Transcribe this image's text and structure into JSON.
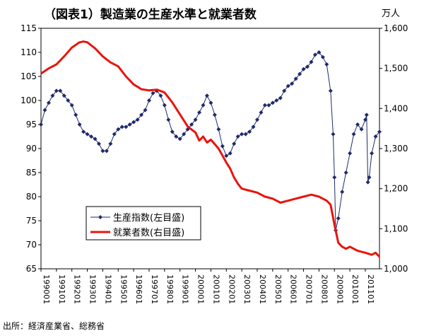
{
  "title": "（図表1）製造業の生産水準と就業者数",
  "right_unit": "万人",
  "source": "出所：経済産業省、総務省",
  "chart_data": {
    "type": "line",
    "xlim": [
      "1990-01",
      "2011-12"
    ],
    "left_axis": {
      "range": [
        65,
        115
      ],
      "ticks": [
        "65",
        "70",
        "75",
        "80",
        "85",
        "90",
        "95",
        "100",
        "105",
        "110",
        "115"
      ]
    },
    "right_axis": {
      "range": [
        1000,
        1600
      ],
      "ticks": [
        "1,000",
        "1,100",
        "1,200",
        "1,300",
        "1,400",
        "1,500",
        "1,600"
      ]
    },
    "x_ticks": [
      "199001",
      "199101",
      "199201",
      "199301",
      "199401",
      "199501",
      "199601",
      "199701",
      "199801",
      "199901",
      "200001",
      "200101",
      "200201",
      "200301",
      "200401",
      "200501",
      "200601",
      "200701",
      "200801",
      "200901",
      "201001",
      "201101"
    ],
    "series": [
      {
        "name": "生産指数(左目盛)",
        "axis": "left",
        "color": "#1F2A6B",
        "marker": "diamond",
        "points": [
          [
            "1990-01",
            95
          ],
          [
            "1990-04",
            98
          ],
          [
            "1990-07",
            99.5
          ],
          [
            "1990-10",
            101
          ],
          [
            "1991-01",
            102
          ],
          [
            "1991-04",
            102
          ],
          [
            "1991-07",
            101
          ],
          [
            "1991-10",
            100
          ],
          [
            "1992-01",
            99
          ],
          [
            "1992-04",
            97
          ],
          [
            "1992-07",
            95
          ],
          [
            "1992-10",
            93.5
          ],
          [
            "1993-01",
            93
          ],
          [
            "1993-04",
            92.5
          ],
          [
            "1993-07",
            92
          ],
          [
            "1993-10",
            91
          ],
          [
            "1994-01",
            89.5
          ],
          [
            "1994-04",
            89.5
          ],
          [
            "1994-07",
            91
          ],
          [
            "1994-10",
            93
          ],
          [
            "1995-01",
            94
          ],
          [
            "1995-04",
            94.5
          ],
          [
            "1995-07",
            94.5
          ],
          [
            "1995-10",
            95
          ],
          [
            "1996-01",
            95.5
          ],
          [
            "1996-04",
            96
          ],
          [
            "1996-07",
            97
          ],
          [
            "1996-10",
            98
          ],
          [
            "1997-01",
            100
          ],
          [
            "1997-04",
            101.5
          ],
          [
            "1997-07",
            102
          ],
          [
            "1997-10",
            101
          ],
          [
            "1998-01",
            99
          ],
          [
            "1998-04",
            96
          ],
          [
            "1998-07",
            93.5
          ],
          [
            "1998-10",
            92.5
          ],
          [
            "1999-01",
            92
          ],
          [
            "1999-04",
            93
          ],
          [
            "1999-07",
            94
          ],
          [
            "1999-10",
            95
          ],
          [
            "2000-01",
            96
          ],
          [
            "2000-04",
            97.5
          ],
          [
            "2000-07",
            99
          ],
          [
            "2000-10",
            101
          ],
          [
            "2001-01",
            99.5
          ],
          [
            "2001-04",
            97
          ],
          [
            "2001-07",
            94
          ],
          [
            "2001-10",
            90.5
          ],
          [
            "2002-01",
            88.5
          ],
          [
            "2002-04",
            89
          ],
          [
            "2002-07",
            91
          ],
          [
            "2002-10",
            92.5
          ],
          [
            "2003-01",
            93
          ],
          [
            "2003-04",
            93
          ],
          [
            "2003-07",
            93.5
          ],
          [
            "2003-10",
            94.5
          ],
          [
            "2004-01",
            96
          ],
          [
            "2004-04",
            97.5
          ],
          [
            "2004-07",
            99
          ],
          [
            "2004-10",
            99
          ],
          [
            "2005-01",
            99.5
          ],
          [
            "2005-04",
            100
          ],
          [
            "2005-07",
            100.5
          ],
          [
            "2005-10",
            102
          ],
          [
            "2006-01",
            103
          ],
          [
            "2006-04",
            103.5
          ],
          [
            "2006-07",
            104.5
          ],
          [
            "2006-10",
            105.5
          ],
          [
            "2007-01",
            106.5
          ],
          [
            "2007-04",
            107
          ],
          [
            "2007-07",
            108
          ],
          [
            "2007-10",
            109.5
          ],
          [
            "2008-01",
            110
          ],
          [
            "2008-04",
            109
          ],
          [
            "2008-07",
            107.5
          ],
          [
            "2008-10",
            102
          ],
          [
            "2008-12",
            93
          ],
          [
            "2009-01",
            84
          ],
          [
            "2009-02",
            73
          ],
          [
            "2009-04",
            75.5
          ],
          [
            "2009-07",
            81
          ],
          [
            "2009-10",
            85
          ],
          [
            "2010-01",
            89
          ],
          [
            "2010-04",
            93
          ],
          [
            "2010-07",
            95
          ],
          [
            "2010-10",
            94
          ],
          [
            "2011-01",
            96
          ],
          [
            "2011-02",
            97
          ],
          [
            "2011-03",
            83
          ],
          [
            "2011-04",
            84
          ],
          [
            "2011-06",
            89
          ],
          [
            "2011-09",
            92.5
          ],
          [
            "2011-12",
            93.5
          ]
        ]
      },
      {
        "name": "就業者数(右目盛)",
        "axis": "right",
        "color": "#E8140C",
        "marker": "none",
        "points": [
          [
            "1990-01",
            1487
          ],
          [
            "1990-07",
            1500
          ],
          [
            "1991-01",
            1510
          ],
          [
            "1991-07",
            1530
          ],
          [
            "1992-01",
            1552
          ],
          [
            "1992-07",
            1565
          ],
          [
            "1992-10",
            1567
          ],
          [
            "1993-01",
            1565
          ],
          [
            "1993-07",
            1550
          ],
          [
            "1994-01",
            1530
          ],
          [
            "1994-07",
            1515
          ],
          [
            "1995-01",
            1505
          ],
          [
            "1995-07",
            1480
          ],
          [
            "1996-01",
            1460
          ],
          [
            "1996-07",
            1448
          ],
          [
            "1997-01",
            1445
          ],
          [
            "1997-07",
            1447
          ],
          [
            "1998-01",
            1440
          ],
          [
            "1998-07",
            1415
          ],
          [
            "1999-01",
            1385
          ],
          [
            "1999-07",
            1355
          ],
          [
            "2000-01",
            1340
          ],
          [
            "2000-04",
            1320
          ],
          [
            "2000-07",
            1330
          ],
          [
            "2000-10",
            1315
          ],
          [
            "2001-01",
            1322
          ],
          [
            "2001-07",
            1300
          ],
          [
            "2002-01",
            1265
          ],
          [
            "2002-04",
            1250
          ],
          [
            "2002-07",
            1228
          ],
          [
            "2002-10",
            1212
          ],
          [
            "2003-01",
            1200
          ],
          [
            "2003-07",
            1195
          ],
          [
            "2004-01",
            1190
          ],
          [
            "2004-07",
            1180
          ],
          [
            "2005-01",
            1175
          ],
          [
            "2005-07",
            1165
          ],
          [
            "2006-01",
            1170
          ],
          [
            "2006-07",
            1175
          ],
          [
            "2007-01",
            1180
          ],
          [
            "2007-07",
            1185
          ],
          [
            "2008-01",
            1180
          ],
          [
            "2008-07",
            1170
          ],
          [
            "2008-10",
            1160
          ],
          [
            "2009-01",
            1110
          ],
          [
            "2009-04",
            1065
          ],
          [
            "2009-07",
            1055
          ],
          [
            "2009-10",
            1050
          ],
          [
            "2010-01",
            1055
          ],
          [
            "2010-07",
            1045
          ],
          [
            "2011-01",
            1040
          ],
          [
            "2011-06",
            1035
          ],
          [
            "2011-09",
            1040
          ],
          [
            "2011-12",
            1030
          ]
        ]
      }
    ],
    "legend": {
      "position": "lower-left-inside"
    },
    "grid": false
  }
}
